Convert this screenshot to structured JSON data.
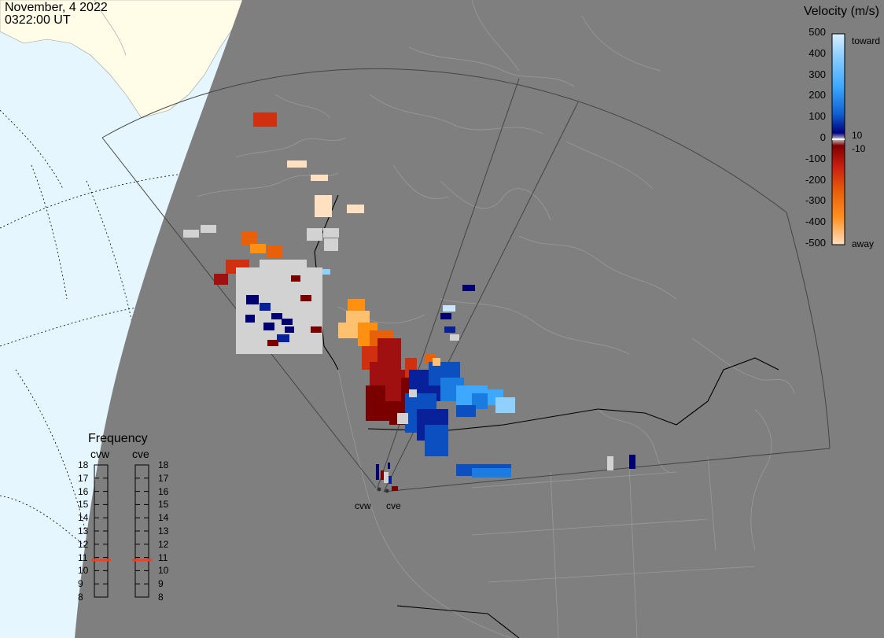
{
  "header": {
    "date": "November, 4 2022",
    "time": "0322:00 UT"
  },
  "velocity_scale": {
    "title": "Velocity (m/s)",
    "ticks": [
      "500",
      "400",
      "300",
      "200",
      "100",
      "0",
      "-100",
      "-200",
      "-300",
      "-400",
      "-500"
    ],
    "toward_label": "toward",
    "away_label": "away",
    "plus_threshold": "10",
    "minus_threshold": "-10",
    "toward_colors": [
      "#c8e8ff",
      "#8fd0ff",
      "#3ea8ff",
      "#1a7be0",
      "#0c4fc0",
      "#08209a",
      "#000070"
    ],
    "away_colors": [
      "#7a0000",
      "#a01010",
      "#d03010",
      "#e8600a",
      "#ff9010",
      "#ffc070",
      "#ffe0c0"
    ]
  },
  "frequency_panel": {
    "title": "Frequency",
    "radar_1": "cvw",
    "radar_2": "cve",
    "ticks": [
      "18",
      "17",
      "16",
      "15",
      "14",
      "13",
      "12",
      "11",
      "10",
      "9",
      "8"
    ],
    "cvw_mhz": 10.8,
    "cve_mhz": 10.8,
    "marker_color": "#ff3c1a"
  },
  "map": {
    "night_color": "#7f7f7f",
    "day_land_color": "#fffde8",
    "day_ocean_color": "#e6f6ff",
    "ground_scatter_color": "#d2d2d2",
    "sites": [
      {
        "label": "cvw"
      },
      {
        "label": "cve"
      }
    ]
  }
}
